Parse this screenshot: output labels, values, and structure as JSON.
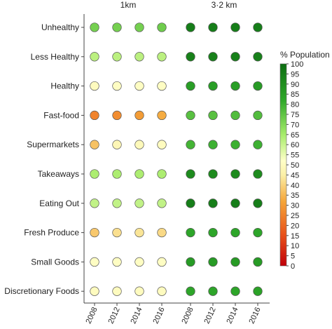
{
  "chart_data": {
    "type": "scatter",
    "title": "",
    "panels": [
      "1km",
      "3·2 km"
    ],
    "x": [
      "2008",
      "2012",
      "2014",
      "2016"
    ],
    "categories": [
      "Unhealthy",
      "Less Healthy",
      "Healthy",
      "Fast-food",
      "Supermarkets",
      "Takeaways",
      "Eating Out",
      "Fresh Produce",
      "Small Goods",
      "Discretionary Foods"
    ],
    "series": [
      {
        "panel": "1km",
        "rows": [
          [
            72,
            72,
            72,
            73
          ],
          [
            62,
            62,
            62,
            62
          ],
          [
            50,
            51,
            51,
            51
          ],
          [
            25,
            27,
            30,
            33
          ],
          [
            37,
            48,
            49,
            50
          ],
          [
            64,
            64,
            64,
            64
          ],
          [
            61,
            61,
            61,
            61
          ],
          [
            38,
            42,
            43,
            41
          ],
          [
            51,
            51,
            51,
            51
          ],
          [
            50,
            50,
            50,
            50
          ]
        ]
      },
      {
        "panel": "3·2 km",
        "rows": [
          [
            95,
            95,
            95,
            95
          ],
          [
            94,
            94,
            94,
            94
          ],
          [
            85,
            85,
            85,
            86
          ],
          [
            76,
            76,
            77,
            77
          ],
          [
            79,
            80,
            80,
            80
          ],
          [
            91,
            91,
            91,
            91
          ],
          [
            95,
            95,
            95,
            95
          ],
          [
            83,
            83,
            83,
            83
          ],
          [
            86,
            86,
            86,
            86
          ],
          [
            83,
            83,
            83,
            84
          ]
        ]
      }
    ],
    "legend": {
      "title": "% Population",
      "ticks": [
        "0",
        "5",
        "10",
        "15",
        "20",
        "25",
        "30",
        "35",
        "40",
        "45",
        "50",
        "55",
        "60",
        "65",
        "70",
        "75",
        "80",
        "85",
        "90",
        "95",
        "100"
      ],
      "range": [
        0,
        100
      ],
      "placement": "right"
    },
    "colorscale": [
      "#c0000a",
      "#e8501a",
      "#f5a63a",
      "#fbf0a8",
      "#ffffc8",
      "#a6ec6a",
      "#2fa82a",
      "#0d6e12"
    ]
  }
}
